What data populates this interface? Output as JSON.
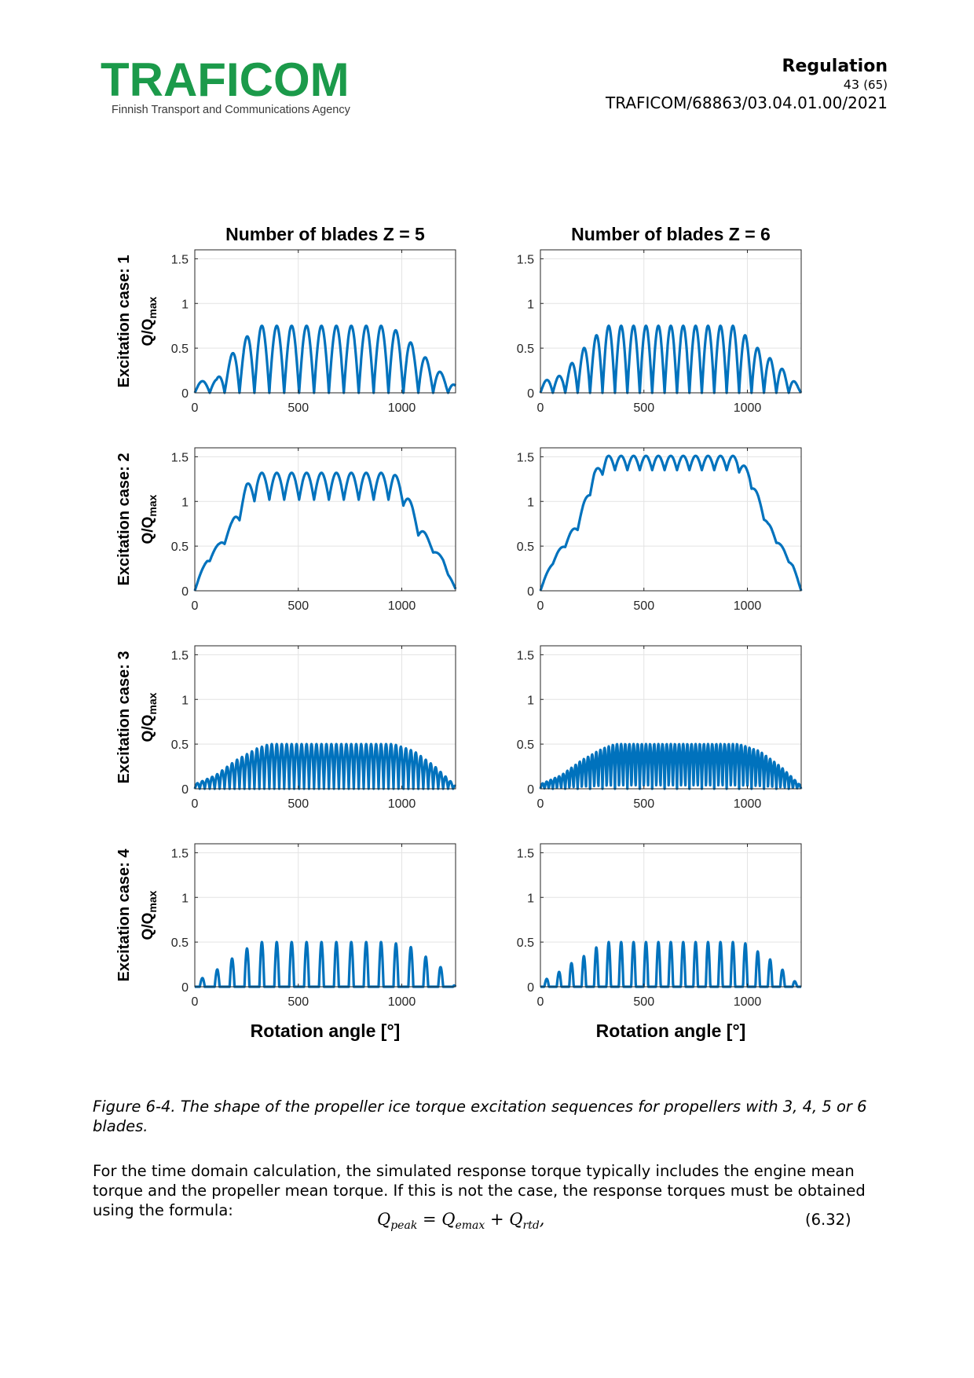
{
  "header": {
    "logo_text": "TRAFICOM",
    "agency": "Finnish Transport and Communications Agency",
    "doc_type": "Regulation",
    "page_current": "43",
    "page_total": "(65)",
    "reference": "TRAFICOM/68863/03.04.01.00/2021"
  },
  "colors": {
    "logo_green": "#1b9a4a",
    "logo_blue": "#0a5fb0",
    "line": "#0072bd"
  },
  "chart_data": [
    {
      "type": "line",
      "title": "Number of blades Z = 5",
      "row_label": "Excitation case: 1",
      "ylabel": "Q/Q",
      "ylabel_sub": "max",
      "xlabel": "",
      "xlim": [
        0,
        1260
      ],
      "ylim": [
        0,
        1.6
      ],
      "xticks": [
        0,
        500,
        1000
      ],
      "yticks": [
        "0",
        "0.5",
        "1",
        "1.5"
      ],
      "grid": true,
      "series": [
        {
          "name": "Q/Qmax",
          "envelope": [
            [
              0,
              0.12
            ],
            [
              105,
              0.15
            ],
            [
              210,
              0.55
            ],
            [
              315,
              0.75
            ],
            [
              945,
              0.75
            ],
            [
              1050,
              0.55
            ],
            [
              1155,
              0.3
            ],
            [
              1260,
              0.08
            ]
          ],
          "x_period": 72,
          "pulse_shape": "half-sine",
          "baseline": 0
        }
      ]
    },
    {
      "type": "line",
      "title": "Number of blades Z = 6",
      "row_label": "Excitation case: 1",
      "ylabel": "Q/Q",
      "ylabel_sub": "max",
      "xlabel": "",
      "xlim": [
        0,
        1260
      ],
      "ylim": [
        0,
        1.6
      ],
      "xticks": [
        0,
        500,
        1000
      ],
      "yticks": [
        "0",
        "0.5",
        "1",
        "1.5"
      ],
      "grid": true,
      "series": [
        {
          "name": "Q/Qmax",
          "envelope": [
            [
              0,
              0.12
            ],
            [
              105,
              0.2
            ],
            [
              210,
              0.5
            ],
            [
              315,
              0.75
            ],
            [
              945,
              0.75
            ],
            [
              1050,
              0.5
            ],
            [
              1155,
              0.3
            ],
            [
              1260,
              0.05
            ]
          ],
          "x_period": 60,
          "pulse_shape": "half-sine",
          "baseline": 0
        }
      ]
    },
    {
      "type": "line",
      "title": "",
      "row_label": "Excitation case: 2",
      "ylabel": "Q/Q",
      "ylabel_sub": "max",
      "xlabel": "",
      "xlim": [
        0,
        1260
      ],
      "ylim": [
        0,
        1.6
      ],
      "xticks": [
        0,
        500,
        1000
      ],
      "yticks": [
        "0",
        "0.5",
        "1",
        "1.5"
      ],
      "grid": true,
      "series": [
        {
          "name": "Q/Qmax",
          "baseline_envelope": [
            [
              0,
              0
            ],
            [
              60,
              0.3
            ],
            [
              180,
              0.62
            ],
            [
              250,
              0.95
            ],
            [
              300,
              1.02
            ],
            [
              960,
              1.02
            ],
            [
              1010,
              0.95
            ],
            [
              1080,
              0.62
            ],
            [
              1200,
              0.3
            ],
            [
              1260,
              0
            ]
          ],
          "ripple_amplitude": [
            [
              0,
              0.05
            ],
            [
              120,
              0.08
            ],
            [
              220,
              0.2
            ],
            [
              300,
              0.3
            ],
            [
              960,
              0.3
            ],
            [
              1040,
              0.2
            ],
            [
              1140,
              0.08
            ],
            [
              1260,
              0.02
            ]
          ],
          "x_period": 72
        }
      ]
    },
    {
      "type": "line",
      "title": "",
      "row_label": "Excitation case: 2",
      "ylabel": "Q/Q",
      "ylabel_sub": "max",
      "xlabel": "",
      "xlim": [
        0,
        1260
      ],
      "ylim": [
        0,
        1.6
      ],
      "xticks": [
        0,
        500,
        1000
      ],
      "yticks": [
        "0",
        "0.5",
        "1",
        "1.5"
      ],
      "grid": true,
      "series": [
        {
          "name": "Q/Qmax",
          "baseline_envelope": [
            [
              0,
              0
            ],
            [
              60,
              0.3
            ],
            [
              180,
              0.68
            ],
            [
              260,
              1.2
            ],
            [
              320,
              1.35
            ],
            [
              950,
              1.35
            ],
            [
              1010,
              1.2
            ],
            [
              1100,
              0.68
            ],
            [
              1220,
              0.25
            ],
            [
              1260,
              0
            ]
          ],
          "ripple_amplitude": [
            [
              0,
              0.03
            ],
            [
              120,
              0.07
            ],
            [
              240,
              0.12
            ],
            [
              320,
              0.16
            ],
            [
              950,
              0.16
            ],
            [
              1060,
              0.1
            ],
            [
              1160,
              0.06
            ],
            [
              1260,
              0.02
            ]
          ],
          "x_period": 60
        }
      ]
    },
    {
      "type": "line",
      "title": "",
      "row_label": "Excitation case: 3",
      "ylabel": "Q/Q",
      "ylabel_sub": "max",
      "xlabel": "",
      "xlim": [
        0,
        1260
      ],
      "ylim": [
        0,
        1.6
      ],
      "xticks": [
        0,
        500,
        1000
      ],
      "yticks": [
        "0",
        "0.5",
        "1",
        "1.5"
      ],
      "grid": true,
      "series": [
        {
          "name": "Q/Qmax",
          "envelope": [
            [
              0,
              0.05
            ],
            [
              100,
              0.15
            ],
            [
              200,
              0.32
            ],
            [
              300,
              0.45
            ],
            [
              360,
              0.5
            ],
            [
              960,
              0.5
            ],
            [
              1060,
              0.42
            ],
            [
              1160,
              0.25
            ],
            [
              1260,
              0.03
            ]
          ],
          "x_period": 24,
          "pulse_shape": "half-sine",
          "baseline": 0
        }
      ]
    },
    {
      "type": "line",
      "title": "",
      "row_label": "Excitation case: 3",
      "ylabel": "Q/Q",
      "ylabel_sub": "max",
      "xlabel": "",
      "xlim": [
        0,
        1260
      ],
      "ylim": [
        0,
        1.6
      ],
      "xticks": [
        0,
        500,
        1000
      ],
      "yticks": [
        "0",
        "0.5",
        "1",
        "1.5"
      ],
      "grid": true,
      "series": [
        {
          "name": "Q/Qmax",
          "envelope": [
            [
              0,
              0.05
            ],
            [
              100,
              0.15
            ],
            [
              200,
              0.32
            ],
            [
              300,
              0.45
            ],
            [
              360,
              0.5
            ],
            [
              960,
              0.5
            ],
            [
              1060,
              0.42
            ],
            [
              1160,
              0.25
            ],
            [
              1260,
              0.03
            ]
          ],
          "x_period": 20,
          "pulse_shape": "half-sine",
          "baseline": 0
        }
      ]
    },
    {
      "type": "line",
      "title": "",
      "row_label": "Excitation case: 4",
      "ylabel": "Q/Q",
      "ylabel_sub": "max",
      "xlabel": "Rotation angle [°]",
      "xlim": [
        0,
        1260
      ],
      "ylim": [
        0,
        1.6
      ],
      "xticks": [
        0,
        500,
        1000
      ],
      "yticks": [
        "0",
        "0.5",
        "1",
        "1.5"
      ],
      "grid": true,
      "series": [
        {
          "name": "Q/Qmax",
          "envelope": [
            [
              0,
              0.05
            ],
            [
              100,
              0.18
            ],
            [
              200,
              0.35
            ],
            [
              300,
              0.5
            ],
            [
              940,
              0.5
            ],
            [
              1040,
              0.45
            ],
            [
              1140,
              0.3
            ],
            [
              1200,
              0.2
            ],
            [
              1260,
              0.0
            ]
          ],
          "x_period": 72,
          "pulse_shape": "narrow-pulse",
          "pulse_width_deg": 24,
          "baseline": 0
        }
      ]
    },
    {
      "type": "line",
      "title": "",
      "row_label": "Excitation case: 4",
      "ylabel": "Q/Q",
      "ylabel_sub": "max",
      "xlabel": "Rotation angle [°]",
      "xlim": [
        0,
        1260
      ],
      "ylim": [
        0,
        1.6
      ],
      "xticks": [
        0,
        500,
        1000
      ],
      "yticks": [
        "0",
        "0.5",
        "1",
        "1.5"
      ],
      "grid": true,
      "series": [
        {
          "name": "Q/Qmax",
          "envelope": [
            [
              0,
              0.05
            ],
            [
              80,
              0.15
            ],
            [
              160,
              0.28
            ],
            [
              240,
              0.38
            ],
            [
              300,
              0.5
            ],
            [
              980,
              0.5
            ],
            [
              1060,
              0.38
            ],
            [
              1140,
              0.26
            ],
            [
              1200,
              0.12
            ],
            [
              1260,
              0.0
            ]
          ],
          "x_period": 60,
          "pulse_shape": "narrow-pulse",
          "pulse_width_deg": 22,
          "baseline": 0
        }
      ]
    }
  ],
  "caption": "Figure 6-4. The shape of the propeller ice torque excitation sequences for propellers with 3, 4, 5 or 6 blades.",
  "paragraph": "For the time domain calculation, the simulated response torque typically includes the engine mean torque and the propeller mean torque. If this is not the case, the response torques must be obtained using the formula:",
  "formula": {
    "q1": "Q",
    "s1": "peak",
    "eq": "=",
    "q2": "Q",
    "s2": "emax",
    "plus": "+",
    "q3": "Q",
    "s3": "rtd",
    "tail": ",",
    "number": "(6.32)"
  }
}
